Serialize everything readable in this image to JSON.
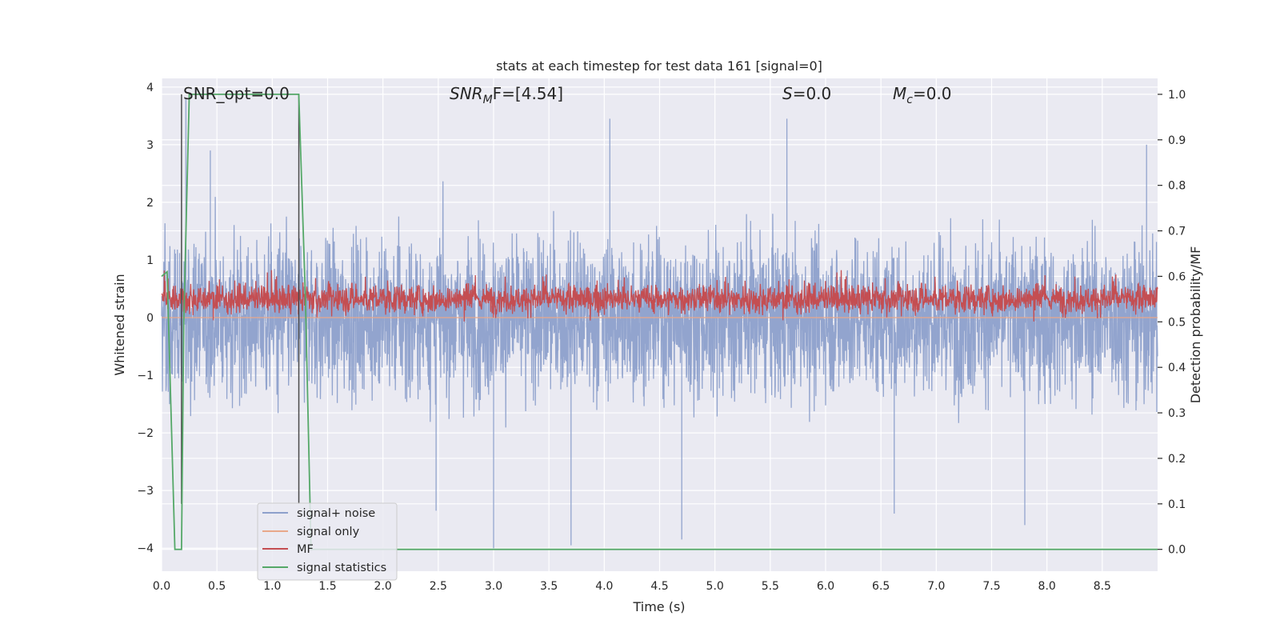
{
  "chart_data": {
    "type": "line",
    "title": "stats at each timestep for test data 161 [signal=0]",
    "xlabel": "Time (s)",
    "ylabel": "Whitened strain",
    "ylabel_right": "Detection probability/MF",
    "xlim": [
      0.0,
      9.0
    ],
    "ylim": [
      -4.4,
      4.15
    ],
    "ylim_right": [
      -0.048,
      1.035
    ],
    "x_ticks": [
      "0.0",
      "0.5",
      "1.0",
      "1.5",
      "2.0",
      "2.5",
      "3.0",
      "3.5",
      "4.0",
      "4.5",
      "5.0",
      "5.5",
      "6.0",
      "6.5",
      "7.0",
      "7.5",
      "8.0",
      "8.5"
    ],
    "y_ticks": [
      "4",
      "3",
      "2",
      "1",
      "0",
      "−1",
      "−2",
      "−3",
      "−4"
    ],
    "y_right_ticks": [
      "1.0",
      "0.9",
      "0.8",
      "0.7",
      "0.6",
      "0.5",
      "0.4",
      "0.3",
      "0.2",
      "0.1",
      "0.0"
    ],
    "annotations": {
      "snr_opt": "SNR_opt=0.0",
      "snr_mf_main": "SNR",
      "snr_mf_sub": "M",
      "snr_mf_rest": "F=[4.54]",
      "s_main": "S",
      "s_rest": "=0.0",
      "mc_main": "M",
      "mc_sub": "c",
      "mc_rest": "=0.0"
    },
    "legend": {
      "placement": "lower-left",
      "entries": [
        {
          "label": "signal+ noise",
          "color": "#8da0cb"
        },
        {
          "label": "signal only",
          "color": "#e8a88a"
        },
        {
          "label": "MF",
          "color": "#c44e52"
        },
        {
          "label": "signal statistics",
          "color": "#55a868"
        }
      ]
    },
    "grid": true,
    "series": [
      {
        "name": "signal+ noise",
        "axis": "left",
        "color": "#8da0cb",
        "description_values": "noise band approx ±1.5 with spikes to ±3.8",
        "spikes": [
          [
            0.22,
            3.8
          ],
          [
            0.44,
            2.9
          ],
          [
            2.48,
            -3.35
          ],
          [
            3.0,
            -4.0
          ],
          [
            3.7,
            -3.95
          ],
          [
            4.05,
            3.45
          ],
          [
            4.7,
            -3.85
          ],
          [
            5.65,
            3.45
          ],
          [
            6.62,
            -3.4
          ],
          [
            7.8,
            -3.6
          ],
          [
            8.9,
            3.0
          ]
        ]
      },
      {
        "name": "signal only",
        "axis": "left",
        "color": "#e8a88a",
        "values_note": "flat at 0"
      },
      {
        "name": "MF",
        "axis": "right",
        "color": "#c44e52",
        "range": [
          0.5,
          0.64
        ]
      },
      {
        "name": "signal statistics",
        "axis": "right",
        "color": "#55a868",
        "x": [
          0.0,
          0.05,
          0.12,
          0.18,
          0.2,
          0.25,
          1.24,
          1.3,
          1.35,
          9.0
        ],
        "y": [
          0.6,
          0.61,
          0.0,
          0.0,
          0.5,
          1.0,
          1.0,
          0.55,
          0.0,
          0.0
        ]
      }
    ],
    "vertical_lines": [
      0.18,
      1.24
    ]
  }
}
